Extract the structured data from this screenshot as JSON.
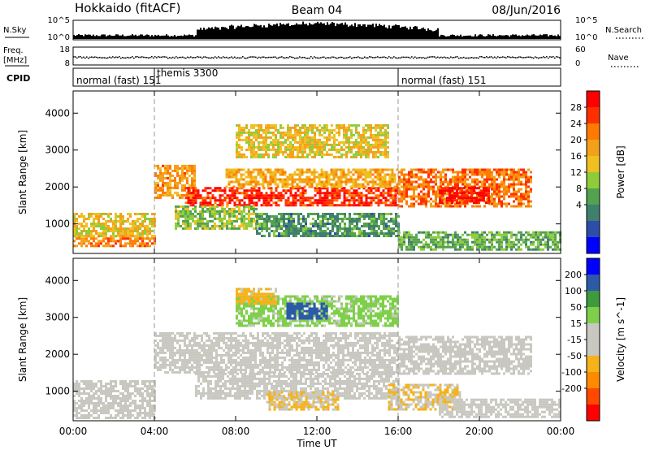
{
  "header": {
    "station": "Hokkaido (fitACF)",
    "beam": "Beam 04",
    "date": "08/Jun/2016"
  },
  "strips": {
    "nsky": {
      "label": "N.Sky",
      "left_ticks": [
        "10^5",
        "10^0"
      ],
      "right_ticks": [
        "10^5",
        "10^0"
      ],
      "right_label": "N.Search"
    },
    "freq": {
      "label": "Freq.",
      "unit": "[MHz]",
      "left_ticks": [
        "18",
        "8"
      ],
      "right_ticks": [
        "60",
        "0"
      ],
      "right_label": "Nave"
    },
    "cpid": {
      "label": "CPID",
      "segments": [
        {
          "text": "normal (fast) 151",
          "start_hour": 0,
          "end_hour": 4
        },
        {
          "text": "themis 3300",
          "start_hour": 4,
          "end_hour": 16
        },
        {
          "text": "normal (fast) 151",
          "start_hour": 16,
          "end_hour": 24
        }
      ]
    }
  },
  "chart_data": [
    {
      "type": "heatmap",
      "name": "power",
      "ylabel": "Slant Range [km]",
      "y_ticks": [
        "1000",
        "2000",
        "3000",
        "4000"
      ],
      "ylim": [
        200,
        4600
      ],
      "x_ticks": [
        "00:00",
        "04:00",
        "08:00",
        "12:00",
        "16:00",
        "20:00",
        "00:00"
      ],
      "xlim": [
        0,
        24
      ],
      "vertical_markers_hours": [
        4,
        16
      ],
      "colorbar": {
        "label": "Power [dB]",
        "ticks": [
          "28",
          "24",
          "20",
          "16",
          "12",
          "8",
          "4"
        ],
        "range": [
          0,
          32
        ],
        "colors": [
          "#0000ff",
          "#2c4ea8",
          "#3f7f6e",
          "#53a24f",
          "#8fcc3a",
          "#f0c020",
          "#f3a01a",
          "#ff7a00",
          "#ff3000",
          "#ff0000"
        ]
      },
      "regions": [
        {
          "t0": 0.0,
          "t1": 4.0,
          "r0": 400,
          "r1": 700,
          "level": 24
        },
        {
          "t0": 0.0,
          "t1": 4.0,
          "r0": 700,
          "r1": 1300,
          "level": 18
        },
        {
          "t0": 4.0,
          "t1": 6.0,
          "r0": 1700,
          "r1": 2600,
          "level": 22
        },
        {
          "t0": 5.5,
          "t1": 16.0,
          "r0": 1500,
          "r1": 2000,
          "level": 28
        },
        {
          "t0": 7.5,
          "t1": 16.0,
          "r0": 2000,
          "r1": 2500,
          "level": 20
        },
        {
          "t0": 5.0,
          "t1": 9.0,
          "r0": 900,
          "r1": 1500,
          "level": 14
        },
        {
          "t0": 8.0,
          "t1": 15.5,
          "r0": 2800,
          "r1": 3700,
          "level": 18
        },
        {
          "t0": 9.0,
          "t1": 16.0,
          "r0": 700,
          "r1": 1300,
          "level": 10
        },
        {
          "t0": 16.0,
          "t1": 22.5,
          "r0": 1500,
          "r1": 2500,
          "level": 24
        },
        {
          "t0": 18.0,
          "t1": 20.5,
          "r0": 1600,
          "r1": 2000,
          "level": 30
        },
        {
          "t0": 16.0,
          "t1": 24.0,
          "r0": 300,
          "r1": 800,
          "level": 12
        }
      ]
    },
    {
      "type": "heatmap",
      "name": "velocity",
      "ylabel": "Slant Range [km]",
      "y_ticks": [
        "1000",
        "2000",
        "3000",
        "4000"
      ],
      "ylim": [
        200,
        4600
      ],
      "x_ticks": [
        "00:00",
        "04:00",
        "08:00",
        "12:00",
        "16:00",
        "20:00",
        "00:00"
      ],
      "xlim": [
        0,
        24
      ],
      "xlabel": "Time UT",
      "vertical_markers_hours": [
        4,
        16
      ],
      "colorbar": {
        "label": "Velocity [m s^-1]",
        "ticks": [
          "200",
          "100",
          "50",
          "15",
          "-15",
          "-50",
          "-100",
          "-200"
        ],
        "range": [
          -250,
          250
        ],
        "colors": [
          "#ff0000",
          "#ff4800",
          "#ff8a00",
          "#f5b21a",
          "#c8c8c0",
          "#c8c8c0",
          "#7ed04a",
          "#3d9a3d",
          "#2c5aa8",
          "#0000ff"
        ]
      },
      "regions": [
        {
          "t0": 0.0,
          "t1": 4.0,
          "r0": 300,
          "r1": 1300,
          "value": 0
        },
        {
          "t0": 4.0,
          "t1": 16.0,
          "r0": 1500,
          "r1": 2600,
          "value": 0
        },
        {
          "t0": 6.0,
          "t1": 16.0,
          "r0": 800,
          "r1": 1500,
          "value": 0
        },
        {
          "t0": 8.0,
          "t1": 16.0,
          "r0": 2800,
          "r1": 3600,
          "value": 60
        },
        {
          "t0": 10.5,
          "t1": 12.5,
          "r0": 3000,
          "r1": 3400,
          "value": 180
        },
        {
          "t0": 8.0,
          "t1": 10.0,
          "r0": 3400,
          "r1": 3800,
          "value": -60
        },
        {
          "t0": 9.5,
          "t1": 13.0,
          "r0": 500,
          "r1": 1000,
          "value": -50
        },
        {
          "t0": 15.5,
          "t1": 19.0,
          "r0": 500,
          "r1": 1200,
          "value": -50
        },
        {
          "t0": 16.0,
          "t1": 22.5,
          "r0": 1500,
          "r1": 2500,
          "value": 0
        },
        {
          "t0": 18.0,
          "t1": 24.0,
          "r0": 300,
          "r1": 800,
          "value": 0
        }
      ]
    }
  ]
}
